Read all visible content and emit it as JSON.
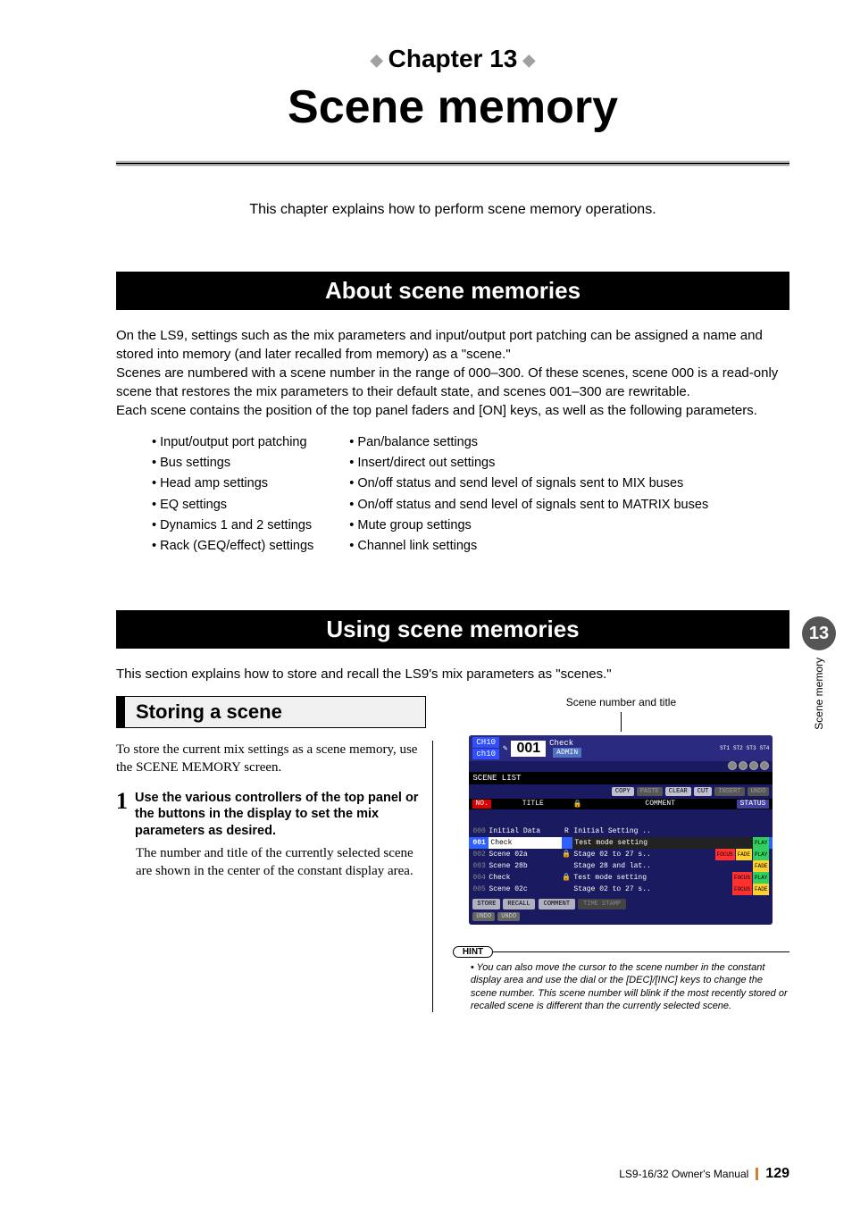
{
  "chapter": {
    "label": "Chapter 13",
    "title": "Scene memory"
  },
  "intro": "This chapter explains how to perform scene memory operations.",
  "section1": {
    "heading": "About scene memories",
    "p1": "On the LS9, settings such as the mix parameters and input/output port patching can be assigned a name and stored into memory (and later recalled from memory) as a \"scene.\"",
    "p2": "Scenes are numbered with a scene number in the range of 000–300. Of these scenes, scene 000 is a read-only scene that restores the mix parameters to their default state, and scenes 001–300 are rewritable.",
    "p3": "Each scene contains the position of the top panel faders and [ON] keys, as well as the following parameters.",
    "bullets_left": [
      "Input/output port patching",
      "Bus settings",
      "Head amp settings",
      "EQ settings",
      "Dynamics 1 and 2 settings",
      "Rack (GEQ/effect) settings"
    ],
    "bullets_right": [
      "Pan/balance settings",
      "Insert/direct out settings",
      "On/off status and send level of signals sent to MIX buses",
      "On/off status and send level of signals sent to MATRIX buses",
      "Mute group settings",
      "Channel link settings"
    ]
  },
  "section2": {
    "heading": "Using scene memories",
    "intro": "This section explains how to store and recall the LS9's mix parameters as \"scenes.\""
  },
  "storing": {
    "heading": "Storing a scene",
    "intro": "To store the current mix settings as a scene memory, use the SCENE MEMORY screen.",
    "step_num": "1",
    "step_text": "Use the various controllers of the top panel or the buttons in the display to set the mix parameters as desired.",
    "step_body": "The number and title of the currently selected scene are shown in the center of the constant display area."
  },
  "figure": {
    "caption": "Scene number and title",
    "ch_label_top": "CH10",
    "ch_label_bot": "ch10",
    "scene_no": "001",
    "scene_title": "Check",
    "admin": "ADMIN",
    "st_labels": [
      "ST1",
      "ST2",
      "ST3",
      "ST4"
    ],
    "screen_name": "SCENE LIST",
    "toolbar": [
      "COPY",
      "PASTE",
      "CLEAR",
      "CUT",
      "INSERT",
      "UNDO"
    ],
    "hdr_no": "NO.",
    "hdr_title": "TITLE",
    "hdr_comment": "COMMENT",
    "hdr_status": "STATUS",
    "rows": [
      {
        "n": "000",
        "t": "Initial Data",
        "lk": "R",
        "c": "Initial Setting ..",
        "sel": false,
        "b": []
      },
      {
        "n": "001",
        "t": "Check",
        "lk": "",
        "c": "Test mode setting",
        "sel": true,
        "b": [
          "PLAY"
        ]
      },
      {
        "n": "002",
        "t": "Scene 02a",
        "lk": "🔒",
        "c": "Stage 02 to 27 s..",
        "sel": false,
        "b": [
          "FOCUS",
          "FADE",
          "PLAY"
        ]
      },
      {
        "n": "003",
        "t": "Scene 28b",
        "lk": "",
        "c": "Stage 28 and lat..",
        "sel": false,
        "b": [
          "FADE"
        ]
      },
      {
        "n": "004",
        "t": "Check",
        "lk": "🔒",
        "c": "Test mode setting",
        "sel": false,
        "b": [
          "FOCUS",
          "PLAY"
        ]
      },
      {
        "n": "005",
        "t": "Scene 02c",
        "lk": "",
        "c": "Stage 02 to 27 s..",
        "sel": false,
        "b": [
          "FOCUS",
          "FADE"
        ]
      }
    ],
    "foot": {
      "store": "STORE",
      "recall": "RECALL",
      "undo1": "UNDO",
      "undo2": "UNDO",
      "tab1": "COMMENT",
      "tab2": "TIME STAMP"
    }
  },
  "hint": {
    "label": "HINT",
    "text": "You can also move the cursor to the scene number in the constant display area and use the dial or the [DEC]/[INC] keys to change the scene number. This scene number will blink if the most recently stored or recalled scene is different than the currently selected scene."
  },
  "sidetab": {
    "num": "13",
    "label": "Scene memory"
  },
  "footer": {
    "manual": "LS9-16/32  Owner's Manual",
    "page": "129"
  }
}
